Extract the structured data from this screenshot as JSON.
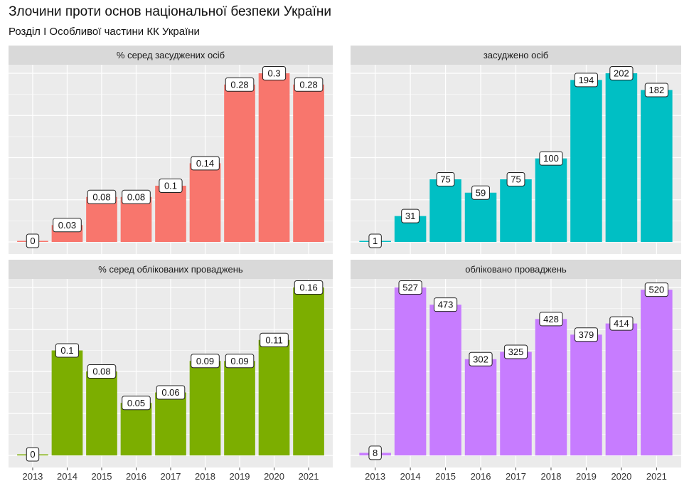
{
  "title": "Злочини проти основ національної безпеки України",
  "subtitle": "Розділ  І  Особливої частини КК України",
  "chart_data": [
    {
      "type": "bar",
      "facet_title": "% серед засуджених осіб",
      "color": "#F8766D",
      "categories": [
        "2013",
        "2014",
        "2015",
        "2016",
        "2017",
        "2018",
        "2019",
        "2020",
        "2021"
      ],
      "values": [
        0,
        0.03,
        0.08,
        0.08,
        0.1,
        0.14,
        0.28,
        0.3,
        0.28
      ],
      "labels": [
        "0",
        "0.03",
        "0.08",
        "0.08",
        "0.1",
        "0.14",
        "0.28",
        "0.3",
        "0.28"
      ],
      "ylim": [
        0,
        0.3
      ]
    },
    {
      "type": "bar",
      "facet_title": "засуджено осіб",
      "color": "#00BFC4",
      "categories": [
        "2013",
        "2014",
        "2015",
        "2016",
        "2017",
        "2018",
        "2019",
        "2020",
        "2021"
      ],
      "values": [
        1,
        31,
        75,
        59,
        75,
        100,
        194,
        202,
        182
      ],
      "labels": [
        "1",
        "31",
        "75",
        "59",
        "75",
        "100",
        "194",
        "202",
        "182"
      ],
      "ylim": [
        0,
        202
      ]
    },
    {
      "type": "bar",
      "facet_title": "% серед облікованих проваджень",
      "color": "#7CAE00",
      "categories": [
        "2013",
        "2014",
        "2015",
        "2016",
        "2017",
        "2018",
        "2019",
        "2020",
        "2021"
      ],
      "values": [
        0,
        0.1,
        0.08,
        0.05,
        0.06,
        0.09,
        0.09,
        0.11,
        0.16
      ],
      "labels": [
        "0",
        "0.1",
        "0.08",
        "0.05",
        "0.06",
        "0.09",
        "0.09",
        "0.11",
        "0.16"
      ],
      "ylim": [
        0,
        0.16
      ]
    },
    {
      "type": "bar",
      "facet_title": "обліковано проваджень",
      "color": "#C77CFF",
      "categories": [
        "2013",
        "2014",
        "2015",
        "2016",
        "2017",
        "2018",
        "2019",
        "2020",
        "2021"
      ],
      "values": [
        8,
        527,
        473,
        302,
        325,
        428,
        379,
        414,
        520
      ],
      "labels": [
        "8",
        "527",
        "473",
        "302",
        "325",
        "428",
        "379",
        "414",
        "520"
      ],
      "ylim": [
        0,
        527
      ]
    }
  ]
}
